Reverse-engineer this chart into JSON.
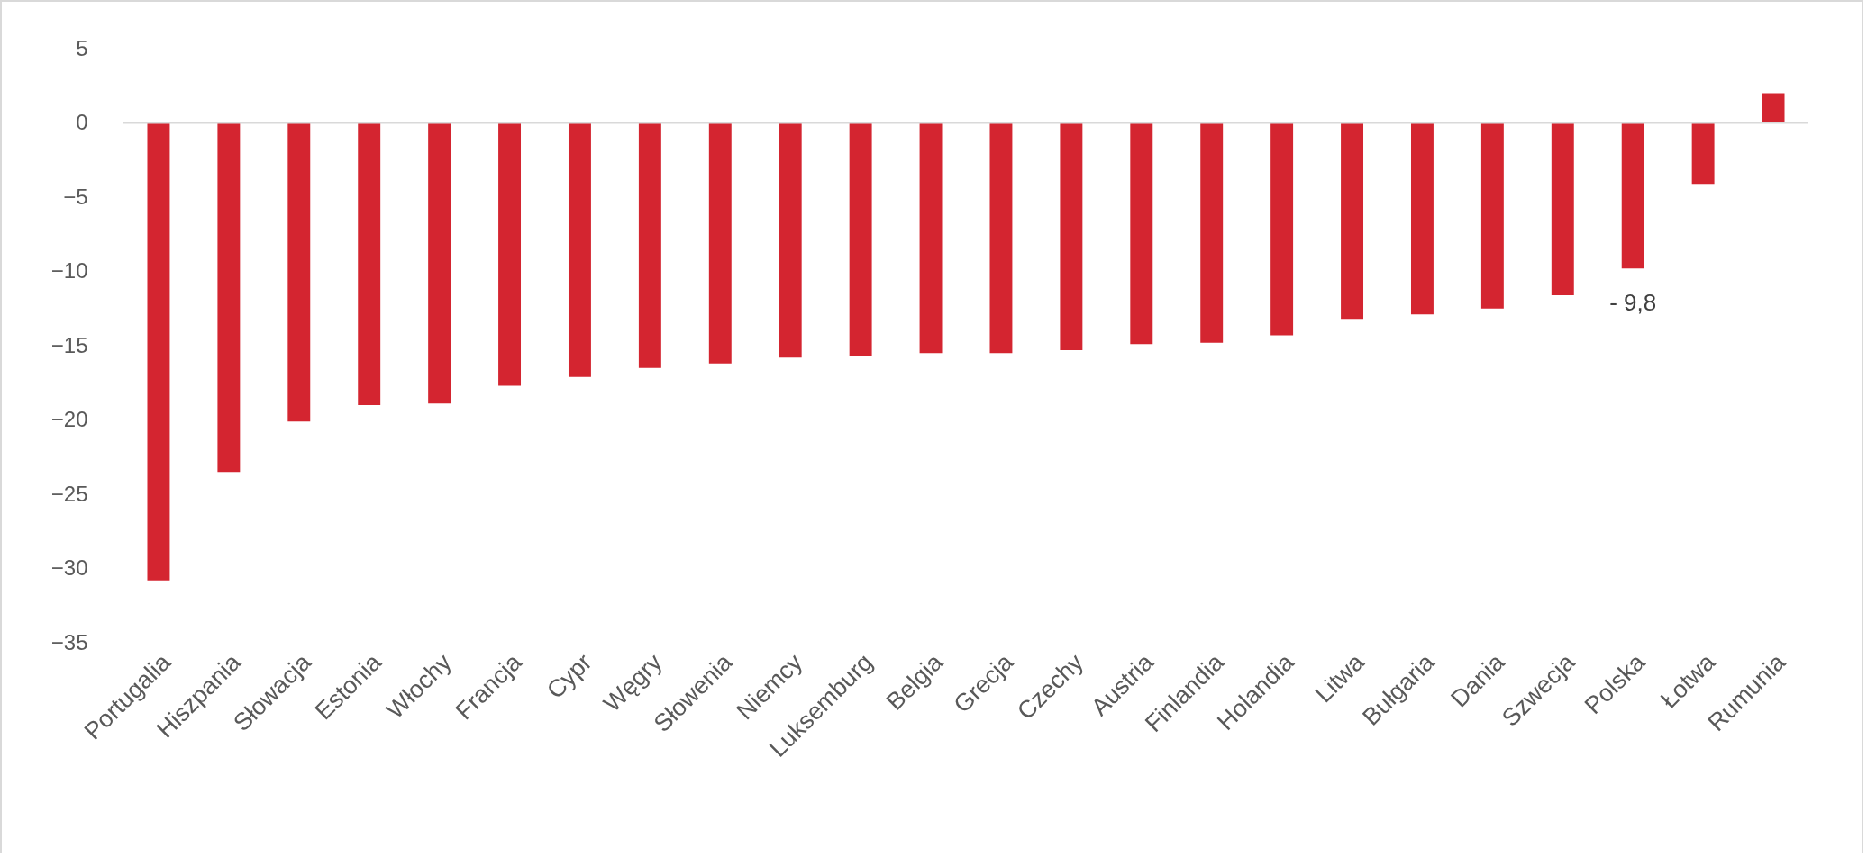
{
  "chart_data": {
    "type": "bar",
    "categories": [
      "Portugalia",
      "Hiszpania",
      "Słowacja",
      "Estonia",
      "Włochy",
      "Francja",
      "Cypr",
      "Węgry",
      "Słowenia",
      "Niemcy",
      "Luksemburg",
      "Belgia",
      "Grecja",
      "Czechy",
      "Austria",
      "Finlandia",
      "Holandia",
      "Litwa",
      "Bułgaria",
      "Dania",
      "Szwecja",
      "Polska",
      "Łotwa",
      "Rumunia"
    ],
    "values": [
      -30.8,
      -23.5,
      -20.1,
      -19.0,
      -18.9,
      -17.7,
      -17.1,
      -16.5,
      -16.2,
      -15.8,
      -15.7,
      -15.5,
      -15.5,
      -15.3,
      -14.9,
      -14.8,
      -14.3,
      -13.2,
      -12.9,
      -12.5,
      -11.6,
      -9.8,
      -4.1,
      2.0
    ],
    "value_labels": [
      null,
      null,
      null,
      null,
      null,
      null,
      null,
      null,
      null,
      null,
      null,
      null,
      null,
      null,
      null,
      null,
      null,
      null,
      null,
      null,
      null,
      "- 9,8",
      null,
      null
    ],
    "color": "#d42530",
    "ylim": [
      -35,
      5
    ],
    "yticks": [
      5,
      0,
      -5,
      -10,
      -15,
      -20,
      -25,
      -30,
      -35
    ],
    "ref_lines": [
      {
        "axis": "y",
        "value": 0,
        "color": "#d9d9d9"
      }
    ],
    "grid": false
  }
}
